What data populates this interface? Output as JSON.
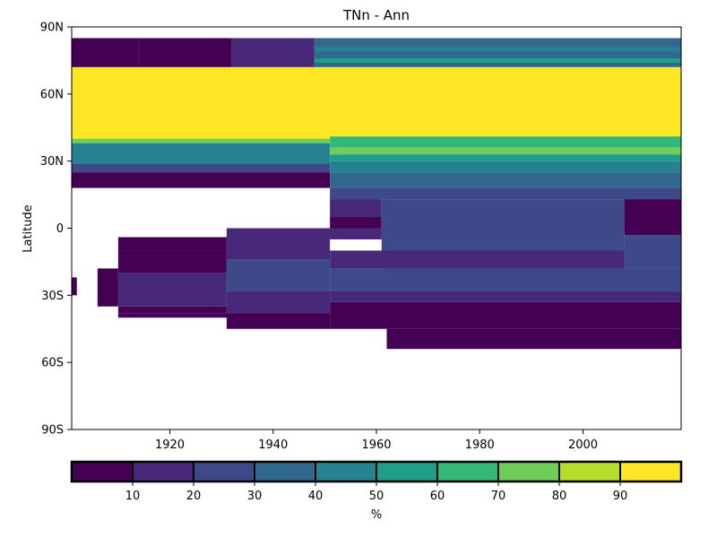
{
  "chart_data": {
    "type": "heatmap",
    "title": "TNn - Ann",
    "xlabel": "",
    "ylabel": "Latitude",
    "xlim": [
      1901,
      2019
    ],
    "ylim": [
      -90,
      90
    ],
    "xticks": [
      {
        "value": 1920,
        "label": "1920"
      },
      {
        "value": 1940,
        "label": "1940"
      },
      {
        "value": 1960,
        "label": "1960"
      },
      {
        "value": 1980,
        "label": "1980"
      },
      {
        "value": 2000,
        "label": "2000"
      }
    ],
    "yticks": [
      {
        "value": 90,
        "label": "90N"
      },
      {
        "value": 60,
        "label": "60N"
      },
      {
        "value": 30,
        "label": "30N"
      },
      {
        "value": 0,
        "label": "0"
      },
      {
        "value": -30,
        "label": "30S"
      },
      {
        "value": -60,
        "label": "60S"
      },
      {
        "value": -90,
        "label": "90S"
      }
    ],
    "colorbar": {
      "label": "%",
      "bounds": [
        0,
        10,
        20,
        30,
        40,
        50,
        60,
        70,
        80,
        90,
        100
      ],
      "tick_labels": [
        "10",
        "20",
        "30",
        "40",
        "50",
        "60",
        "70",
        "80",
        "90"
      ],
      "colors": [
        "#440154",
        "#482878",
        "#3e4989",
        "#31688e",
        "#26828e",
        "#1f9e89",
        "#35b779",
        "#6ece58",
        "#b5de2b",
        "#fde725"
      ]
    },
    "cells": [
      {
        "lat": [
          72,
          85
        ],
        "years": [
          1901,
          1914
        ],
        "value": 5
      },
      {
        "lat": [
          72,
          85
        ],
        "years": [
          1914,
          1932
        ],
        "value": 5
      },
      {
        "lat": [
          72,
          85
        ],
        "years": [
          1932,
          1948
        ],
        "value": 15
      },
      {
        "lat": [
          72,
          85
        ],
        "years": [
          1948,
          2019
        ],
        "value": 35
      },
      {
        "lat": [
          79,
          81
        ],
        "years": [
          1948,
          2019
        ],
        "value": 45
      },
      {
        "lat": [
          74,
          76
        ],
        "years": [
          1948,
          2019
        ],
        "value": 55
      },
      {
        "lat": [
          40,
          72
        ],
        "years": [
          1901,
          2019
        ],
        "value": 95
      },
      {
        "lat": [
          38,
          40
        ],
        "years": [
          1901,
          1951
        ],
        "value": 75
      },
      {
        "lat": [
          29,
          38
        ],
        "years": [
          1901,
          1951
        ],
        "value": 45
      },
      {
        "lat": [
          25,
          29
        ],
        "years": [
          1901,
          1951
        ],
        "value": 25
      },
      {
        "lat": [
          18,
          25
        ],
        "years": [
          1901,
          1951
        ],
        "value": 5
      },
      {
        "lat": [
          36,
          41
        ],
        "years": [
          1951,
          2019
        ],
        "value": 65
      },
      {
        "lat": [
          33,
          36
        ],
        "years": [
          1951,
          2019
        ],
        "value": 75
      },
      {
        "lat": [
          30,
          33
        ],
        "years": [
          1951,
          2019
        ],
        "value": 55
      },
      {
        "lat": [
          25,
          30
        ],
        "years": [
          1951,
          2019
        ],
        "value": 45
      },
      {
        "lat": [
          18,
          25
        ],
        "years": [
          1951,
          2019
        ],
        "value": 35
      },
      {
        "lat": [
          13,
          18
        ],
        "years": [
          1951,
          2019
        ],
        "value": 25
      },
      {
        "lat": [
          5,
          13
        ],
        "years": [
          1951,
          1961
        ],
        "value": 15
      },
      {
        "lat": [
          -3,
          5
        ],
        "years": [
          1951,
          1961
        ],
        "value": 5
      },
      {
        "lat": [
          -18,
          13
        ],
        "years": [
          1961,
          2008
        ],
        "value": 25
      },
      {
        "lat": [
          -3,
          13
        ],
        "years": [
          2008,
          2019
        ],
        "value": 5
      },
      {
        "lat": [
          -18,
          -3
        ],
        "years": [
          2008,
          2019
        ],
        "value": 25
      },
      {
        "lat": [
          -5,
          0
        ],
        "years": [
          1931,
          1961
        ],
        "value": 15
      },
      {
        "lat": [
          -10,
          -4
        ],
        "years": [
          1910,
          1931
        ],
        "value": 5
      },
      {
        "lat": [
          -14,
          -5
        ],
        "years": [
          1931,
          1951
        ],
        "value": 15
      },
      {
        "lat": [
          -28,
          -14
        ],
        "years": [
          1931,
          1951
        ],
        "value": 25
      },
      {
        "lat": [
          -38,
          -28
        ],
        "years": [
          1931,
          1951
        ],
        "value": 15
      },
      {
        "lat": [
          -20,
          -10
        ],
        "years": [
          1910,
          1931
        ],
        "value": 5
      },
      {
        "lat": [
          -35,
          -20
        ],
        "years": [
          1910,
          1931
        ],
        "value": 15
      },
      {
        "lat": [
          -38,
          -35
        ],
        "years": [
          1910,
          1931
        ],
        "value": 5
      },
      {
        "lat": [
          -40,
          -38
        ],
        "years": [
          1910,
          1951
        ],
        "value": 5
      },
      {
        "lat": [
          -18,
          -10
        ],
        "years": [
          1951,
          2008
        ],
        "value": 15
      },
      {
        "lat": [
          -28,
          -18
        ],
        "years": [
          1951,
          2019
        ],
        "value": 25
      },
      {
        "lat": [
          -33,
          -28
        ],
        "years": [
          1951,
          2019
        ],
        "value": 15
      },
      {
        "lat": [
          -45,
          -33
        ],
        "years": [
          1951,
          2019
        ],
        "value": 5
      },
      {
        "lat": [
          -45,
          -38
        ],
        "years": [
          1931,
          1951
        ],
        "value": 5
      },
      {
        "lat": [
          -54,
          -45
        ],
        "years": [
          1962,
          2019
        ],
        "value": 5
      },
      {
        "lat": [
          -35,
          -18
        ],
        "years": [
          1906,
          1910
        ],
        "value": 5
      },
      {
        "lat": [
          -30,
          -22
        ],
        "years": [
          1901,
          1902
        ],
        "value": 5
      }
    ]
  }
}
